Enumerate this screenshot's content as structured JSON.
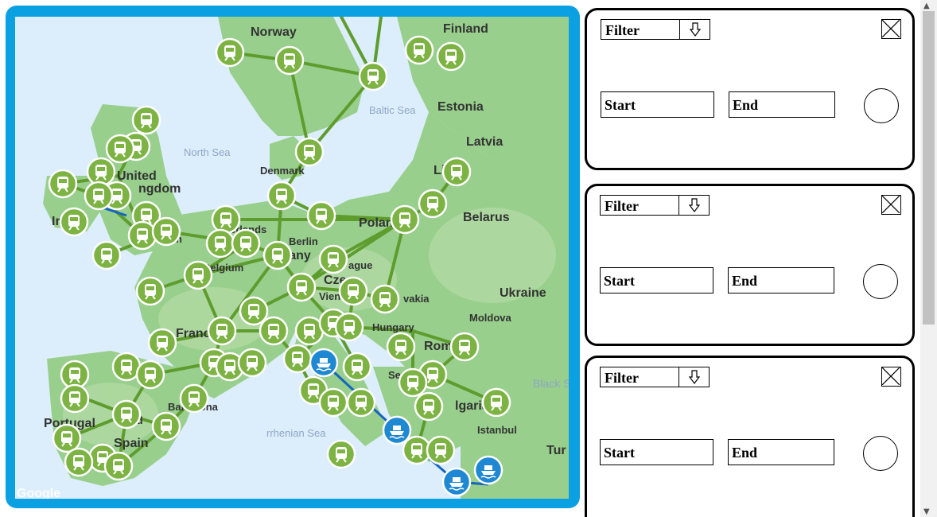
{
  "map": {
    "labels": {
      "norway": "Norway",
      "finland": "Finland",
      "estonia": "Estonia",
      "latvia": "Latvia",
      "lithuania": "Lithu",
      "denmark": "Denmark",
      "united": "United",
      "kingdom": "ngdom",
      "north_sea": "North Sea",
      "baltic_sea": "Baltic Sea",
      "belarus": "Belarus",
      "poland": "Polan",
      "netherlands": "erlands",
      "berlin": "Berlin",
      "germany": "many",
      "belgium": "Belgium",
      "prague": "ague",
      "czechia": "Cze",
      "vienna": "Vienn",
      "slovakia": "vakia",
      "ukraine": "Ukraine",
      "moldova": "Moldova",
      "hungary": "Hungary",
      "france": "Franc",
      "romania": "Rom",
      "serbia": "Serbia",
      "bulgaria": "lgaria",
      "black_sea": "Black S",
      "portugal": "Portugal",
      "spain": "Spain",
      "barcelona": "Barcelona",
      "madrid": "rid",
      "tyrrhenian_sea": "rrhenian Sea",
      "istanbul": "Istanbul",
      "turkey": "Tur",
      "ireland": "Ir",
      "ireland2": "nd",
      "london": "on",
      "google": "Google"
    },
    "marker_types": {
      "train": "train-icon",
      "ferry": "ferry-icon"
    },
    "colors": {
      "water": "#dceefb",
      "land": "#8fc98a",
      "route": "#5e9c2e",
      "train_marker": "#7cb342",
      "ferry_marker": "#1e88d2",
      "ferry_route": "#1565c0",
      "frame": "#0aa0e2"
    }
  },
  "panels": [
    {
      "filter_label": "Filter",
      "start_label": "Start",
      "end_label": "End"
    },
    {
      "filter_label": "Filter",
      "start_label": "Start",
      "end_label": "End"
    },
    {
      "filter_label": "Filter",
      "start_label": "Start",
      "end_label": "End"
    }
  ]
}
